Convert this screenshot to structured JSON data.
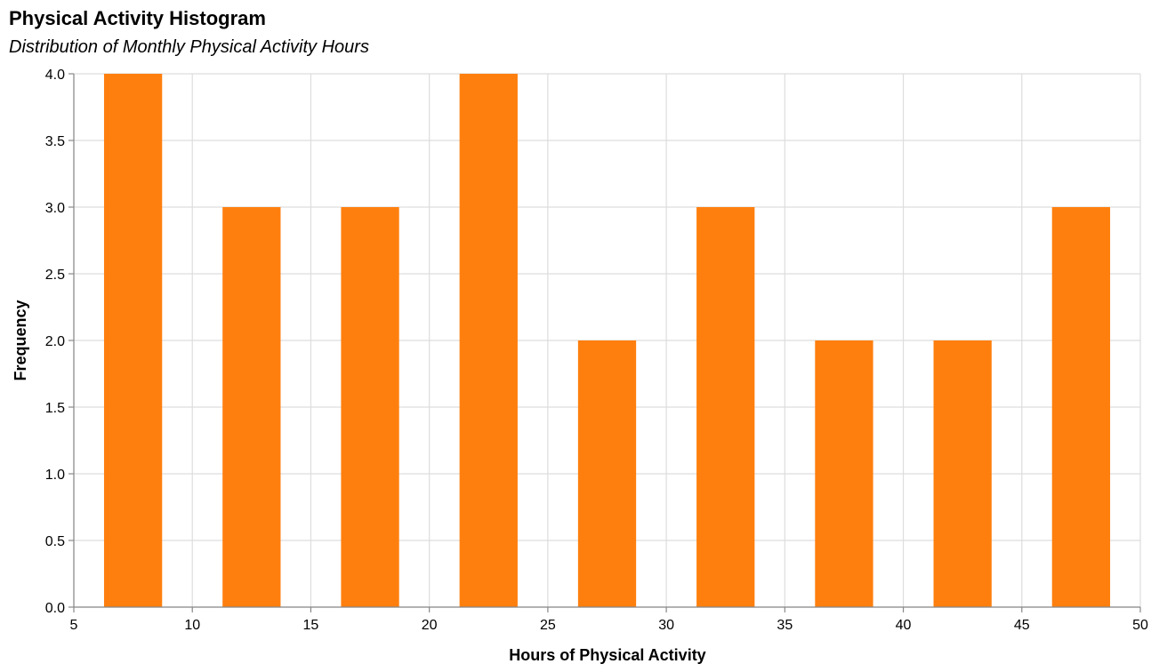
{
  "chart_data": {
    "type": "bar",
    "title": "Physical Activity Histogram",
    "subtitle": "Distribution of Monthly Physical Activity Hours",
    "xlabel": "Hours of Physical Activity",
    "ylabel": "Frequency",
    "xlim": [
      5,
      50
    ],
    "ylim": [
      0,
      4
    ],
    "x_ticks": [
      5,
      10,
      15,
      20,
      25,
      30,
      35,
      40,
      45,
      50
    ],
    "y_ticks": [
      "0.0",
      "0.5",
      "1.0",
      "1.5",
      "2.0",
      "2.5",
      "3.0",
      "3.5",
      "4.0"
    ],
    "bins": [
      {
        "start": 5,
        "end": 10,
        "count": 4
      },
      {
        "start": 10,
        "end": 15,
        "count": 3
      },
      {
        "start": 15,
        "end": 20,
        "count": 3
      },
      {
        "start": 20,
        "end": 25,
        "count": 4
      },
      {
        "start": 25,
        "end": 30,
        "count": 2
      },
      {
        "start": 30,
        "end": 35,
        "count": 3
      },
      {
        "start": 35,
        "end": 40,
        "count": 2
      },
      {
        "start": 40,
        "end": 45,
        "count": 2
      },
      {
        "start": 45,
        "end": 50,
        "count": 3
      }
    ],
    "bar_color": "#ff7f0e",
    "grid": true,
    "legend": "none"
  }
}
